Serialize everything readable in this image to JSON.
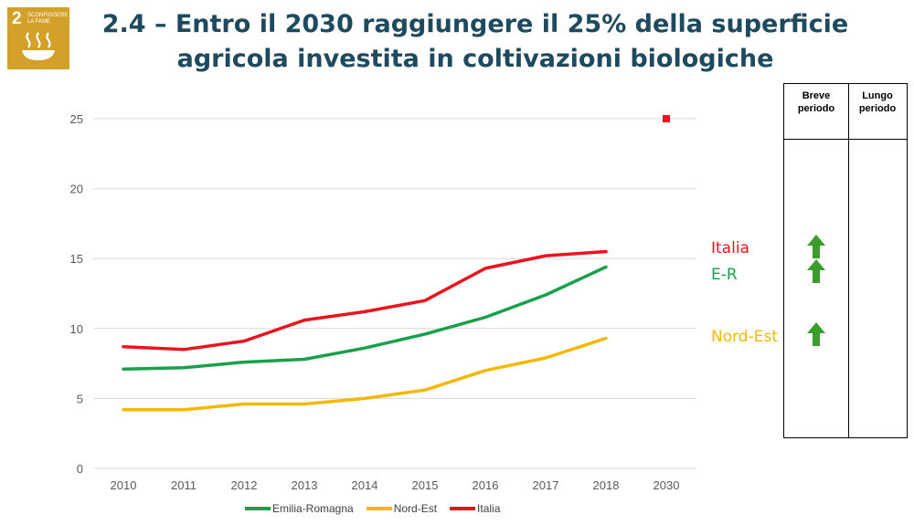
{
  "badge": {
    "number": "2",
    "text": "SCONFIGGERE LA FAME",
    "color": "#d3a029",
    "icon": "bowl-icon"
  },
  "title": {
    "line1": "2.4 – Entro il 2030 raggiungere il 25% della superficie",
    "line2": "agricola investita in coltivazioni biologiche",
    "color": "#1d4a5f"
  },
  "region_labels": [
    {
      "text": "Italia",
      "color": "#e8141e"
    },
    {
      "text": "E-R",
      "color": "#1aa04a"
    },
    {
      "text": "Nord-Est",
      "color": "#f5b800"
    }
  ],
  "trend_table": {
    "headers": {
      "short": "Breve periodo",
      "long": "Lungo periodo"
    },
    "short_term_arrows": [
      {
        "series": "Italia",
        "direction": "up",
        "color": "#3a9d2a",
        "icon": "arrow-up-icon"
      },
      {
        "series": "E-R",
        "direction": "up",
        "color": "#3a9d2a",
        "icon": "arrow-up-icon"
      },
      {
        "series": "Nord-Est",
        "direction": "up",
        "color": "#3a9d2a",
        "icon": "arrow-up-icon"
      }
    ]
  },
  "chart_data": {
    "type": "line",
    "categories": [
      "2010",
      "2011",
      "2012",
      "2013",
      "2014",
      "2015",
      "2016",
      "2017",
      "2018",
      "2030"
    ],
    "ylim": [
      0,
      25
    ],
    "yticks": [
      0,
      5,
      10,
      15,
      20,
      25
    ],
    "grid": true,
    "legend_position": "bottom",
    "series": [
      {
        "name": "Emilia-Romagna",
        "color": "#1aa04a",
        "values": [
          7.1,
          7.2,
          7.6,
          7.8,
          8.6,
          9.6,
          10.8,
          12.4,
          14.4,
          null
        ]
      },
      {
        "name": "Nord-Est",
        "color": "#f5b800",
        "values": [
          4.2,
          4.2,
          4.6,
          4.6,
          5.0,
          5.6,
          7.0,
          7.9,
          9.3,
          null
        ]
      },
      {
        "name": "Italia",
        "color": "#e8141e",
        "values": [
          8.7,
          8.5,
          9.1,
          10.6,
          11.2,
          12.0,
          14.3,
          15.2,
          15.5,
          null
        ]
      }
    ],
    "target": {
      "category": "2030",
      "value": 25,
      "color": "#e8141e"
    }
  }
}
